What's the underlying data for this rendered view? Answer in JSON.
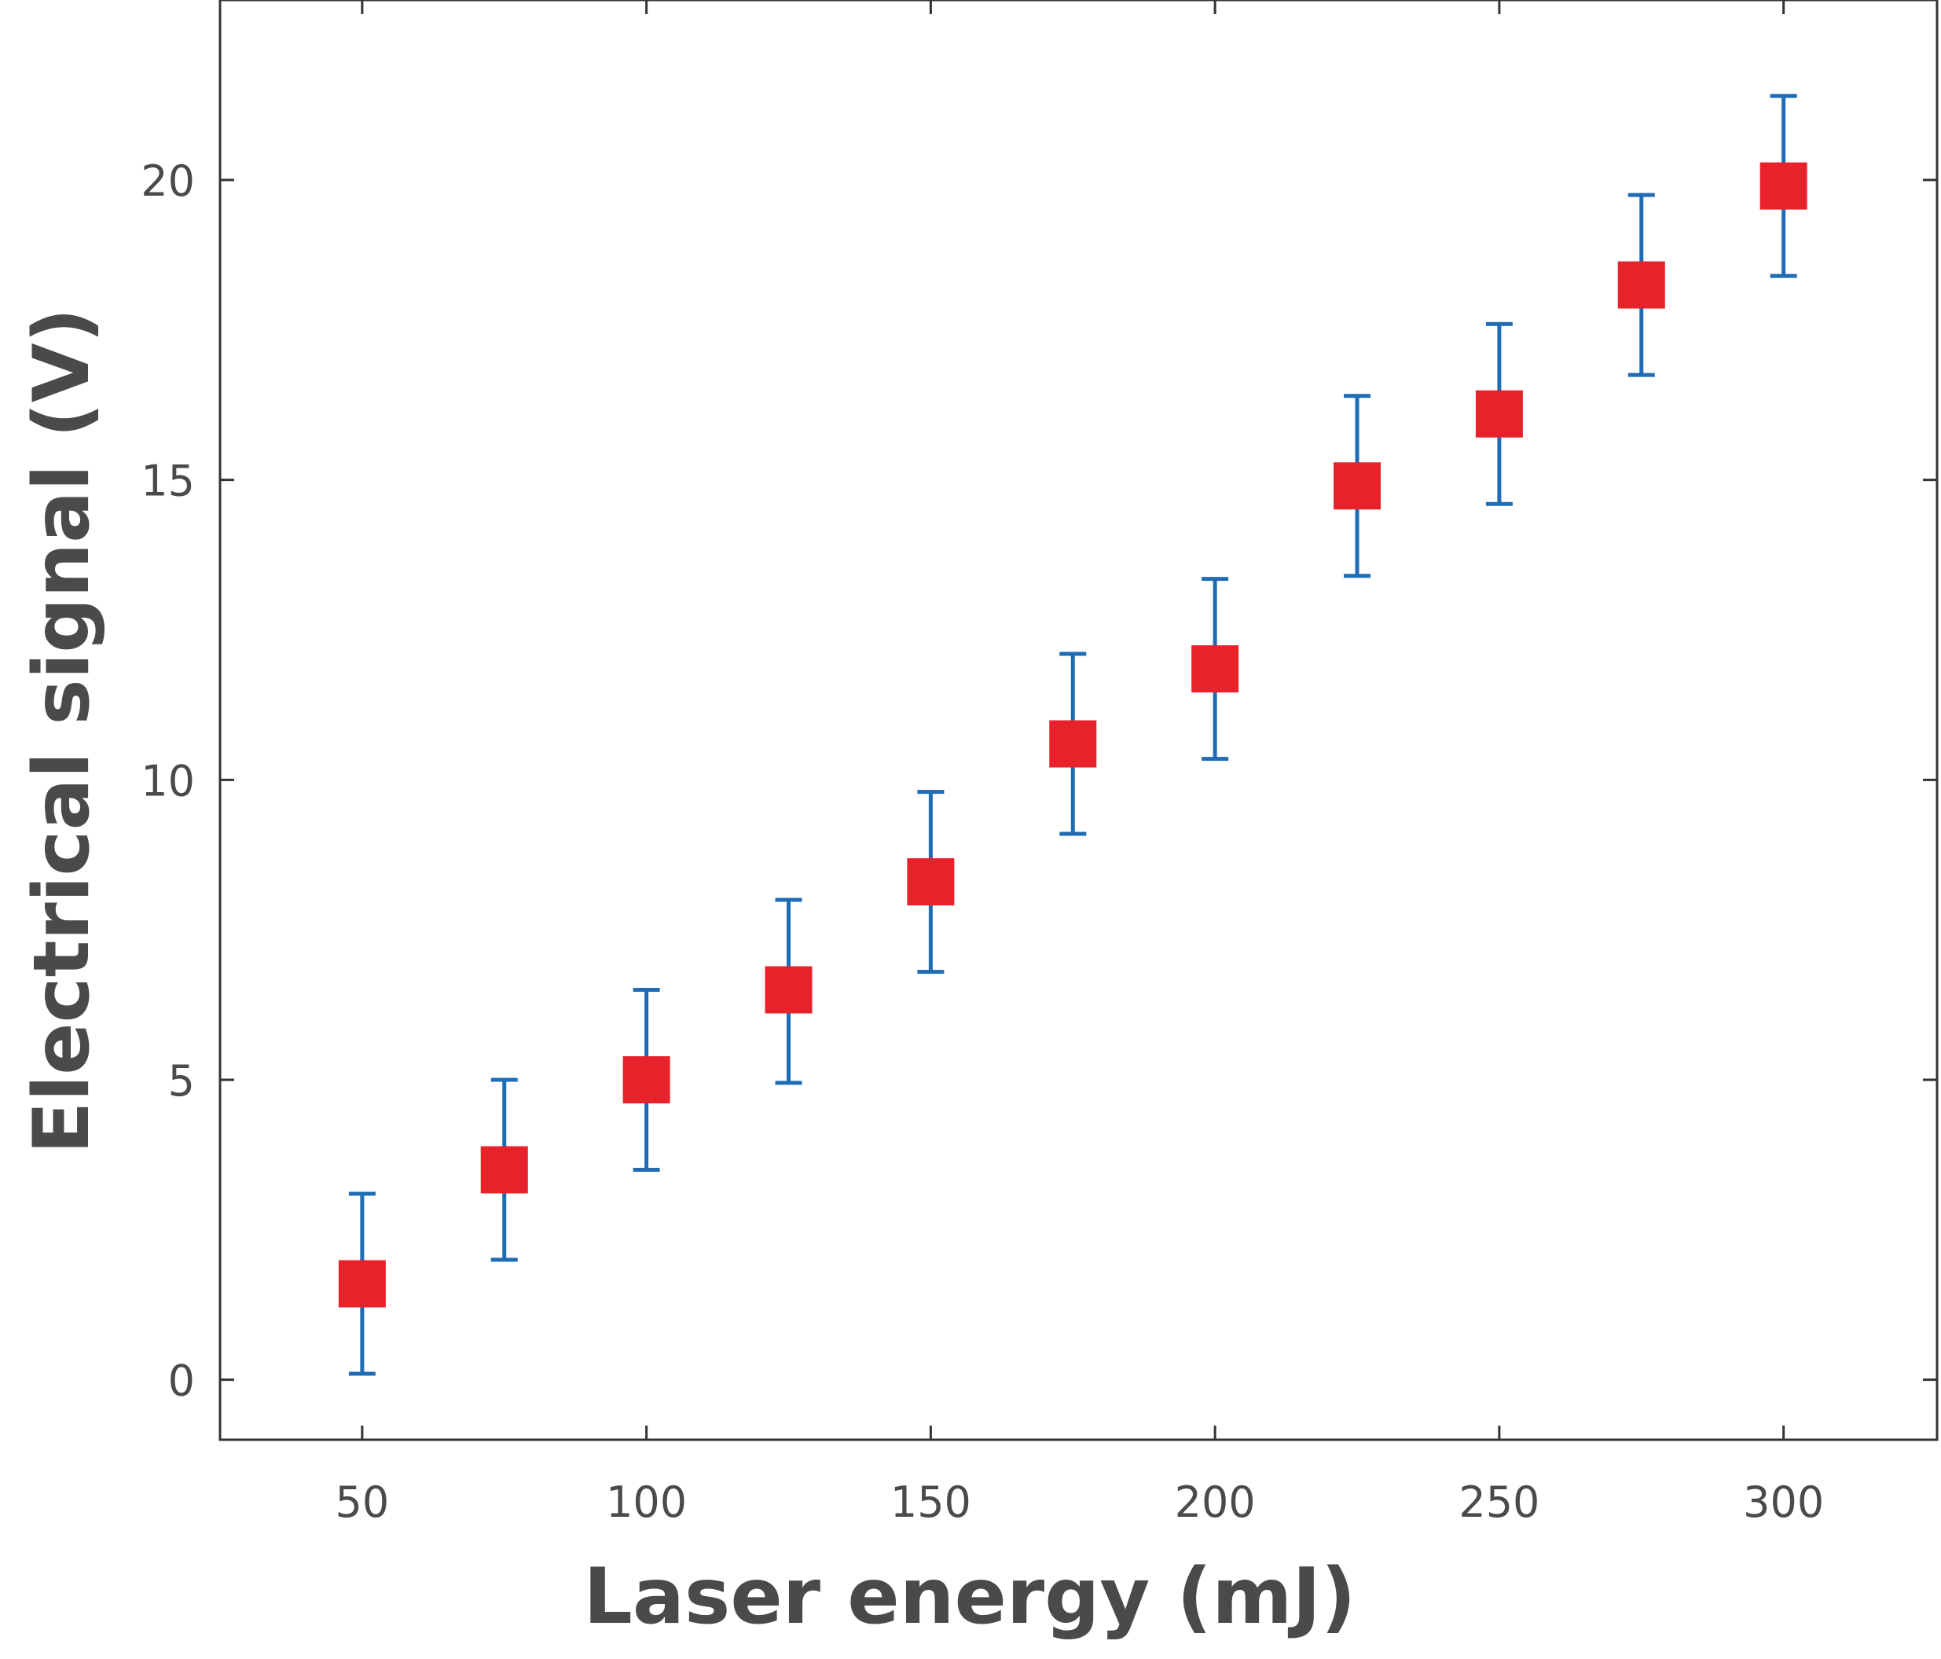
{
  "chart_data": {
    "type": "scatter",
    "title": "",
    "xlabel": "Laser energy (mJ)",
    "ylabel": "Electrical signal (V)",
    "xlim": [
      25,
      327
    ],
    "ylim": [
      -1,
      23
    ],
    "xticks": [
      50,
      100,
      150,
      200,
      250,
      300
    ],
    "yticks": [
      0,
      5,
      10,
      15,
      20
    ],
    "xtick_labels": [
      "50",
      "100",
      "150",
      "200",
      "250",
      "300"
    ],
    "ytick_labels": [
      "0",
      "5",
      "10",
      "15",
      "20"
    ],
    "grid": false,
    "series": [
      {
        "name": "Electrical signal",
        "marker": "square",
        "marker_color": "#e8222a",
        "errorbar_color": "#1f6cb5",
        "x": [
          50,
          75,
          100,
          125,
          150,
          175,
          200,
          225,
          250,
          275,
          300
        ],
        "y": [
          1.6,
          3.5,
          5.0,
          6.5,
          8.3,
          10.6,
          11.85,
          14.9,
          16.1,
          18.25,
          19.9
        ],
        "error_low": [
          1.5,
          1.5,
          1.5,
          1.55,
          1.5,
          1.5,
          1.5,
          1.5,
          1.5,
          1.5,
          1.5
        ],
        "error_high": [
          1.5,
          1.5,
          1.5,
          1.5,
          1.5,
          1.5,
          1.5,
          1.5,
          1.5,
          1.5,
          1.5
        ]
      }
    ]
  }
}
